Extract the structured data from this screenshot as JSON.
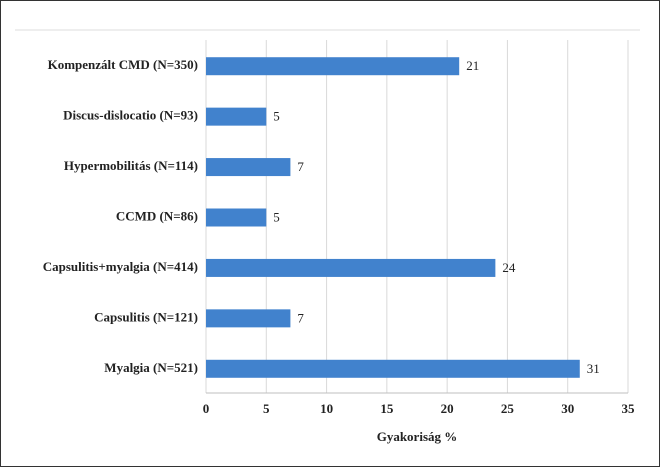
{
  "chart_data": {
    "type": "bar",
    "orientation": "horizontal",
    "categories": [
      "Kompenzált CMD (N=350)",
      "Discus-dislocatio (N=93)",
      "Hypermobilitás (N=114)",
      "CCMD (N=86)",
      "Capsulitis+myalgia (N=414)",
      "Capsulitis (N=121)",
      "Myalgia (N=521)"
    ],
    "values": [
      21,
      5,
      7,
      5,
      24,
      7,
      31
    ],
    "color": "#4182cd",
    "xlabel": "Gyakoriság %",
    "xlim": [
      0,
      35
    ],
    "xticks": [
      0,
      5,
      10,
      15,
      20,
      25,
      30,
      35
    ],
    "grid": true
  }
}
